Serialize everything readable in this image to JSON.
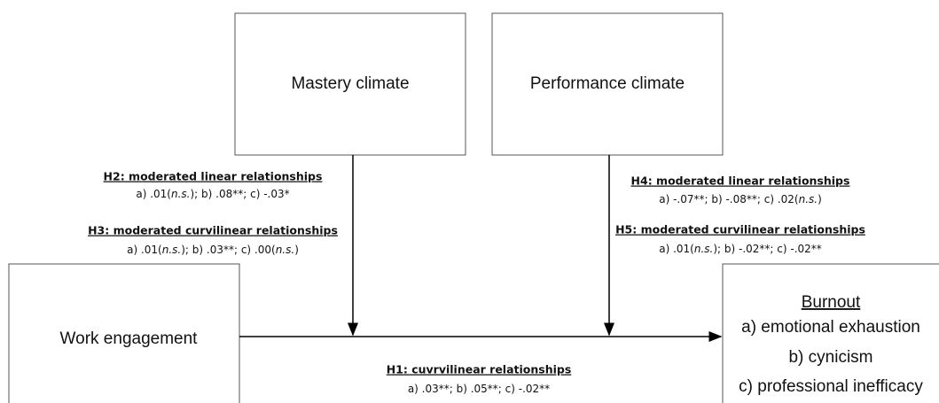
{
  "nodes": [
    {
      "label": "Mastery climate"
    },
    {
      "label": "Performance climate"
    },
    {
      "label": "Work engagement"
    },
    {
      "label": "Burnout",
      "items": [
        "a) emotional exhaustion",
        "b) cynicism",
        "c) professional inefficacy"
      ]
    }
  ],
  "hypotheses": [
    {
      "title": "H2: moderated linear relationships",
      "stats": [
        {
          "text": "a) .01("
        },
        {
          "text": "n.s.",
          "italic": true
        },
        {
          "text": ");  b) .08**; c) -.03*"
        }
      ]
    },
    {
      "title": "H3: moderated curvilinear relationships",
      "stats": [
        {
          "text": "a) .01("
        },
        {
          "text": "n.s.",
          "italic": true
        },
        {
          "text": ");  b) .03**; c) .00("
        },
        {
          "text": "n.s.",
          "italic": true
        },
        {
          "text": ")"
        }
      ]
    },
    {
      "title": "H4: moderated linear relationships",
      "stats": [
        {
          "text": "a) -.07**;  b) -.08**; c) .02("
        },
        {
          "text": "n.s.",
          "italic": true
        },
        {
          "text": ")"
        }
      ]
    },
    {
      "title": "H5: moderated curvilinear relationships",
      "stats": [
        {
          "text": "a) .01("
        },
        {
          "text": "n.s.",
          "italic": true
        },
        {
          "text": ");  b) -.02**; c) -.02**"
        }
      ]
    },
    {
      "title": "H1: cuvrvilinear relationships",
      "stats": [
        {
          "text": "a) .03**;  b) .05**; c) -.02**"
        }
      ]
    }
  ]
}
